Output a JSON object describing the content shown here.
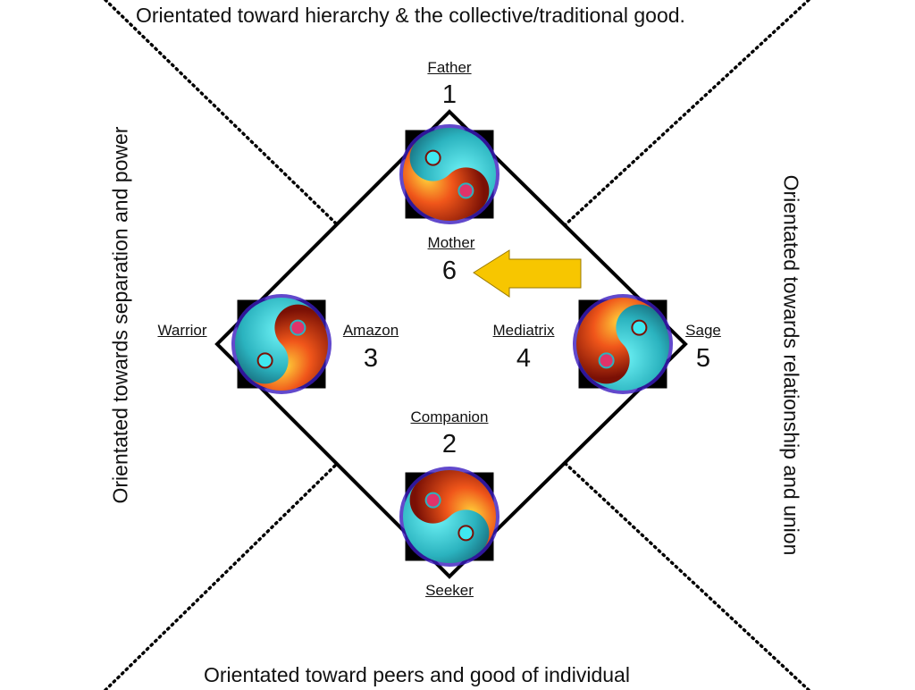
{
  "edges": {
    "top": "Orientated toward hierarchy & the collective/traditional good.",
    "bottom": "Orientated toward peers and good of individual",
    "left": "Orientated towards separation and power",
    "right": "Orientated towards relationship and union"
  },
  "nodes": {
    "father": {
      "label": "Father",
      "number": "1"
    },
    "mother": {
      "label": "Mother",
      "number": "6"
    },
    "warrior": {
      "label": "Warrior"
    },
    "amazon": {
      "label": "Amazon",
      "number": "3"
    },
    "mediatrix": {
      "label": "Mediatrix",
      "number": "4"
    },
    "sage": {
      "label": "Sage",
      "number": "5"
    },
    "companion": {
      "label": "Companion",
      "number": "2"
    },
    "seeker": {
      "label": "Seeker"
    }
  },
  "colors": {
    "fire": "#e8461a",
    "water": "#2fd6e0",
    "arrow": "#f7c600",
    "line": "#000000"
  }
}
